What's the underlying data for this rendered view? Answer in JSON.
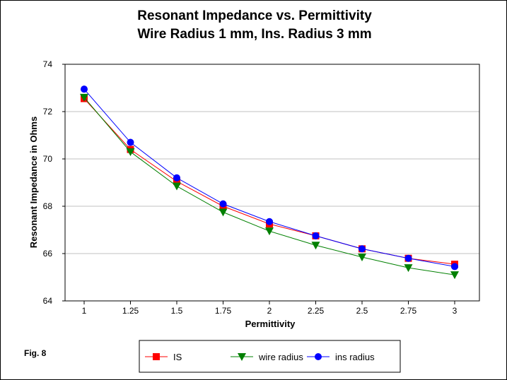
{
  "chart_data": {
    "type": "line",
    "title": "Resonant Impedance vs. Permittivity",
    "subtitle": "Wire Radius 1 mm, Ins. Radius 3 mm",
    "xlabel": "Permittivity",
    "ylabel": "Resonant Impedance in Ohms",
    "x": [
      1,
      1.25,
      1.5,
      1.75,
      2,
      2.25,
      2.5,
      2.75,
      3
    ],
    "x_tick_labels": [
      "1",
      "1.25",
      "1.5",
      "1.75",
      "2",
      "2.25",
      "2.5",
      "2.75",
      "3"
    ],
    "y_tick_labels": [
      "64",
      "66",
      "68",
      "70",
      "72",
      "74"
    ],
    "ylim": [
      64,
      74
    ],
    "grid": "horizontal",
    "legend_position": "bottom",
    "series": [
      {
        "name": "IS",
        "color": "#ff0000",
        "marker": "square",
        "values": [
          72.55,
          70.4,
          69.05,
          68.0,
          67.25,
          66.75,
          66.2,
          65.8,
          65.55
        ]
      },
      {
        "name": "wire radius",
        "color": "#008000",
        "marker": "triangle-down",
        "values": [
          72.6,
          70.3,
          68.85,
          67.75,
          66.95,
          66.35,
          65.85,
          65.4,
          65.1
        ]
      },
      {
        "name": "ins radius",
        "color": "#0000ff",
        "marker": "circle",
        "values": [
          72.95,
          70.7,
          69.2,
          68.1,
          67.35,
          66.75,
          66.2,
          65.8,
          65.45
        ]
      }
    ]
  },
  "figure_label": "Fig. 8"
}
